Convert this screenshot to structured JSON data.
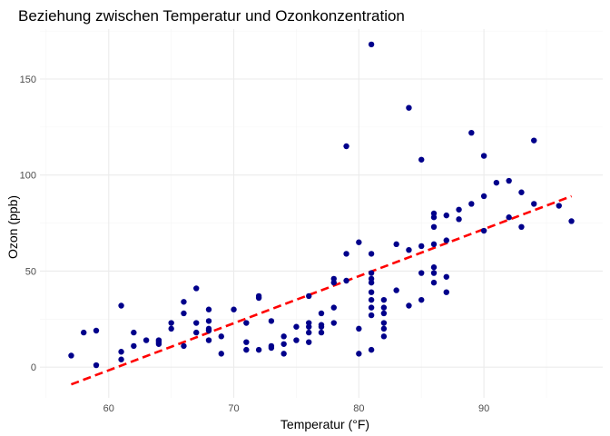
{
  "chart_data": {
    "type": "scatter",
    "title": "Beziehung zwischen Temperatur und Ozonkonzentration",
    "xlabel": "Temperatur (°F)",
    "ylabel": "Ozon (ppb)",
    "xlim": [
      54.5,
      99.5
    ],
    "ylim": [
      -16,
      176
    ],
    "x_ticks": [
      60,
      70,
      80,
      90
    ],
    "y_ticks": [
      0,
      50,
      100,
      150
    ],
    "grid": true,
    "point_color": "#00008B",
    "trend_color": "#FF0000",
    "series": [
      {
        "points": [
          [
            57,
            6
          ],
          [
            58,
            18
          ],
          [
            59,
            19
          ],
          [
            59,
            1
          ],
          [
            61,
            32
          ],
          [
            61,
            8
          ],
          [
            61,
            4
          ],
          [
            62,
            18
          ],
          [
            62,
            11
          ],
          [
            63,
            14
          ],
          [
            64,
            14
          ],
          [
            64,
            13
          ],
          [
            64,
            12
          ],
          [
            65,
            23
          ],
          [
            65,
            20
          ],
          [
            66,
            34
          ],
          [
            66,
            28
          ],
          [
            66,
            11
          ],
          [
            67,
            41
          ],
          [
            67,
            23
          ],
          [
            67,
            18
          ],
          [
            68,
            30
          ],
          [
            68,
            24
          ],
          [
            68,
            20
          ],
          [
            68,
            19
          ],
          [
            68,
            14
          ],
          [
            69,
            16
          ],
          [
            69,
            7
          ],
          [
            70,
            30
          ],
          [
            71,
            23
          ],
          [
            71,
            13
          ],
          [
            71,
            9
          ],
          [
            72,
            37
          ],
          [
            72,
            36
          ],
          [
            72,
            9
          ],
          [
            73,
            24
          ],
          [
            73,
            11
          ],
          [
            73,
            10
          ],
          [
            74,
            16
          ],
          [
            74,
            12
          ],
          [
            74,
            7
          ],
          [
            75,
            21
          ],
          [
            75,
            14
          ],
          [
            76,
            37
          ],
          [
            76,
            23
          ],
          [
            76,
            21
          ],
          [
            76,
            18
          ],
          [
            76,
            13
          ],
          [
            77,
            28
          ],
          [
            77,
            22
          ],
          [
            77,
            21
          ],
          [
            77,
            18
          ],
          [
            78,
            46
          ],
          [
            78,
            44
          ],
          [
            78,
            31
          ],
          [
            78,
            23
          ],
          [
            79,
            115
          ],
          [
            79,
            59
          ],
          [
            79,
            45
          ],
          [
            80,
            65
          ],
          [
            80,
            20
          ],
          [
            80,
            7
          ],
          [
            81,
            168
          ],
          [
            81,
            59
          ],
          [
            81,
            49
          ],
          [
            81,
            46
          ],
          [
            81,
            44
          ],
          [
            81,
            39
          ],
          [
            81,
            35
          ],
          [
            81,
            31
          ],
          [
            81,
            27
          ],
          [
            81,
            9
          ],
          [
            82,
            35
          ],
          [
            82,
            31
          ],
          [
            82,
            28
          ],
          [
            82,
            23
          ],
          [
            82,
            20
          ],
          [
            82,
            16
          ],
          [
            83,
            64
          ],
          [
            83,
            40
          ],
          [
            84,
            135
          ],
          [
            84,
            61
          ],
          [
            84,
            32
          ],
          [
            85,
            108
          ],
          [
            85,
            63
          ],
          [
            85,
            49
          ],
          [
            85,
            35
          ],
          [
            86,
            80
          ],
          [
            86,
            78
          ],
          [
            86,
            73
          ],
          [
            86,
            64
          ],
          [
            86,
            52
          ],
          [
            86,
            49
          ],
          [
            86,
            44
          ],
          [
            87,
            79
          ],
          [
            87,
            66
          ],
          [
            87,
            47
          ],
          [
            87,
            39
          ],
          [
            88,
            82
          ],
          [
            88,
            77
          ],
          [
            89,
            122
          ],
          [
            89,
            85
          ],
          [
            90,
            110
          ],
          [
            90,
            89
          ],
          [
            90,
            71
          ],
          [
            91,
            96
          ],
          [
            92,
            97
          ],
          [
            92,
            78
          ],
          [
            93,
            91
          ],
          [
            93,
            73
          ],
          [
            94,
            118
          ],
          [
            94,
            85
          ],
          [
            96,
            84
          ],
          [
            97,
            76
          ]
        ]
      }
    ],
    "trend": {
      "x": [
        57,
        97
      ],
      "y": [
        -9,
        89
      ]
    }
  }
}
